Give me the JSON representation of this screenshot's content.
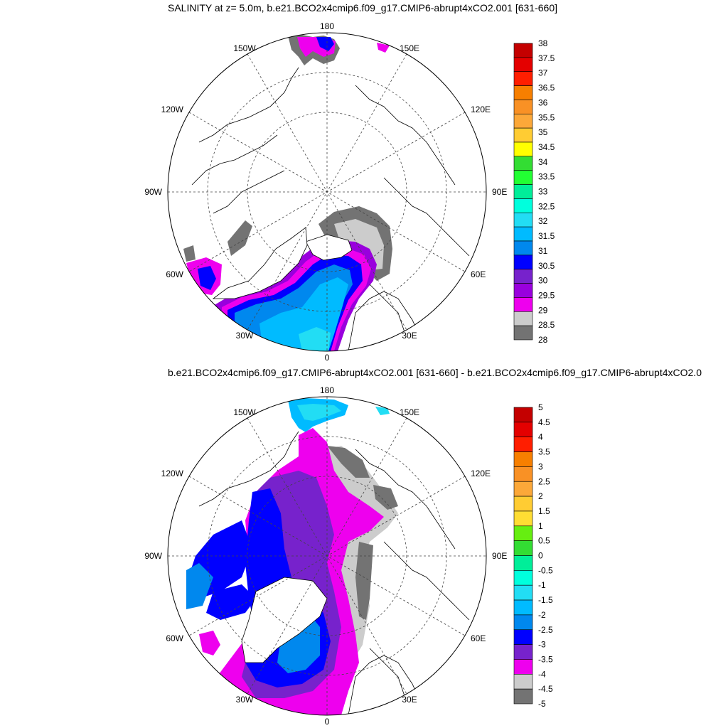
{
  "panels": [
    {
      "id": "top",
      "title": "SALINITY at z=   5.0m, b.e21.BCO2x4cmip6.f09_g17.CMIP6-abrupt4xCO2.001 [631-660]",
      "lon_labels": [
        "180",
        "150E",
        "120E",
        "90E",
        "60E",
        "30E",
        "0",
        "30W",
        "60W",
        "90W",
        "120W",
        "150W"
      ],
      "colorbar": {
        "labels": [
          "38",
          "37.5",
          "37",
          "36.5",
          "36",
          "35.5",
          "35",
          "34.5",
          "34",
          "33.5",
          "33",
          "32.5",
          "32",
          "31.5",
          "31",
          "30.5",
          "30",
          "29.5",
          "29",
          "28.5",
          "28"
        ],
        "colors": [
          "#c40000",
          "#e40000",
          "#ff1e00",
          "#f77f00",
          "#f99125",
          "#fca839",
          "#ffcc33",
          "#ffff00",
          "#33dd33",
          "#22ff33",
          "#00ee99",
          "#00ffdd",
          "#22ddf4",
          "#00bbff",
          "#0088ee",
          "#0000ff",
          "#7722cc",
          "#9900dd",
          "#ee00ee",
          "#cccccc",
          "#737373"
        ]
      }
    },
    {
      "id": "bottom",
      "title": "b.e21.BCO2x4cmip6.f09_g17.CMIP6-abrupt4xCO2.001 [631-660] - b.e21.BCO2x4cmip6.f09_g17.CMIP6-abrupt4xCO2.0",
      "lon_labels": [
        "180",
        "150E",
        "120E",
        "90E",
        "60E",
        "30E",
        "0",
        "30W",
        "60W",
        "90W",
        "120W",
        "150W"
      ],
      "colorbar": {
        "labels": [
          "5",
          "4.5",
          "4",
          "3.5",
          "3",
          "2.5",
          "2",
          "1.5",
          "1",
          "0.5",
          "0",
          "-0.5",
          "-1",
          "-1.5",
          "-2",
          "-2.5",
          "-3",
          "-3.5",
          "-4",
          "-4.5",
          "-5"
        ],
        "colors": [
          "#c40000",
          "#e40000",
          "#ff1e00",
          "#f77f00",
          "#f99125",
          "#fca839",
          "#ffcc33",
          "#ffdd33",
          "#66ee11",
          "#33dd33",
          "#00ee99",
          "#00ffdd",
          "#22ddf4",
          "#00bbff",
          "#0088ee",
          "#0000ff",
          "#7722cc",
          "#ee00ee",
          "#cccccc",
          "#737373"
        ]
      }
    }
  ]
}
